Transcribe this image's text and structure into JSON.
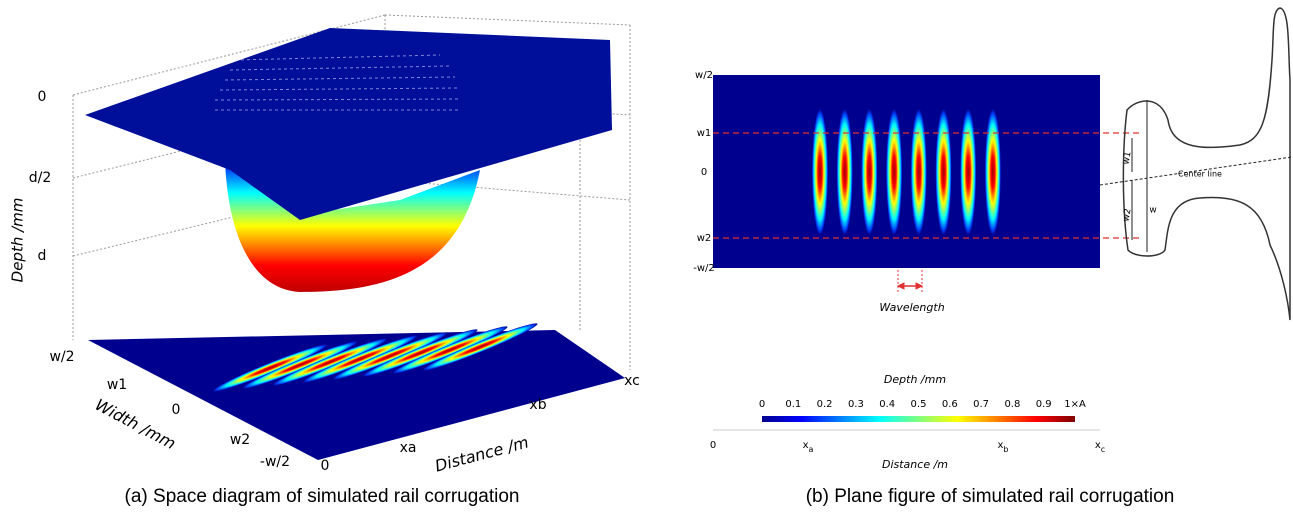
{
  "panel_a": {
    "z_axis": {
      "label": "Depth /mm",
      "ticks": [
        "0",
        "d/2",
        "d"
      ]
    },
    "width_axis": {
      "label": "Width /mm",
      "ticks": [
        "w/2",
        "w1",
        "0",
        "w2",
        "-w/2"
      ]
    },
    "distance_axis": {
      "label": "Distance /m",
      "ticks": [
        "0",
        "xa",
        "xb",
        "xc"
      ]
    },
    "caption": "(a) Space diagram of simulated rail corrugation"
  },
  "panel_b": {
    "y_ticks": [
      "w/2",
      "w1",
      "0",
      "w2",
      "-w/2"
    ],
    "wavelength_label": "Wavelength",
    "rail": {
      "center_line": "Center line",
      "w1": "w1",
      "w2": "w2",
      "w": "w"
    },
    "colorbar": {
      "title": "Depth /mm",
      "ticks": [
        "0",
        "0.1",
        "0.2",
        "0.3",
        "0.4",
        "0.5",
        "0.6",
        "0.7",
        "0.8",
        "0.9",
        "1×A"
      ]
    },
    "x_axis": {
      "label": "Distance /m",
      "ticks": [
        {
          "main": "0"
        },
        {
          "main": "x",
          "sub": "a"
        },
        {
          "main": "x",
          "sub": "b"
        },
        {
          "main": "x",
          "sub": "c"
        }
      ]
    },
    "caption": "(b) Plane figure of simulated rail corrugation"
  }
}
